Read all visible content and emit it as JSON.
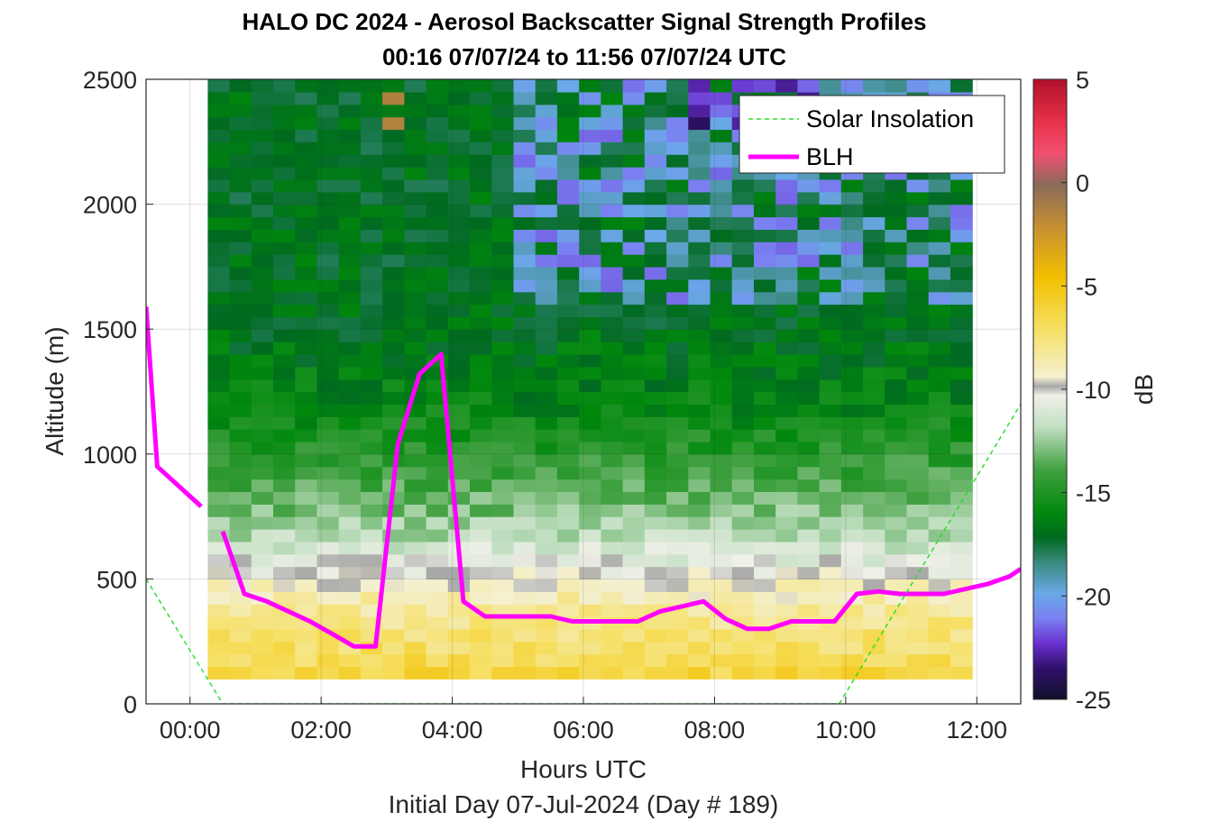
{
  "title_line1": "HALO DC 2024 - Aerosol Backscatter Signal Strength Profiles",
  "title_line2": "00:16 07/07/24 to 11:56 07/07/24  UTC",
  "chart_data": {
    "type": "heatmap",
    "xlabel": "Hours UTC",
    "ylabel": "Altitude (m)",
    "footer": "Initial Day 07-Jul-2024 (Day # 189)",
    "xlim_hours": [
      -0.67,
      12.67
    ],
    "ylim": [
      0,
      2500
    ],
    "x_ticks": [
      0,
      2,
      4,
      6,
      8,
      10,
      12
    ],
    "x_tick_labels": [
      "00:00",
      "02:00",
      "04:00",
      "06:00",
      "08:00",
      "10:00",
      "12:00"
    ],
    "y_ticks": [
      0,
      500,
      1000,
      1500,
      2000,
      2500
    ],
    "y_tick_labels": [
      "0",
      "500",
      "1000",
      "1500",
      "2000",
      "2500"
    ],
    "grid": true,
    "colorbar": {
      "label": "dB",
      "range": [
        -25,
        5
      ],
      "ticks": [
        5,
        0,
        -5,
        -10,
        -15,
        -20,
        -25
      ],
      "tick_labels": [
        "5",
        "0",
        "-5",
        "-10",
        "-15",
        "-20",
        "-25"
      ]
    },
    "legend": {
      "placement": "top-right",
      "entries": [
        {
          "label": "Solar Insolation",
          "color": "#22dd22",
          "style": "dashed"
        },
        {
          "label": "BLH",
          "color": "#ff00ff",
          "style": "solid"
        }
      ]
    },
    "heatmap": {
      "x_start_hours": 0.27,
      "x_end_hours": 11.93,
      "n_columns": 35,
      "alt_start": 100,
      "alt_end": 2500,
      "n_rows": 48,
      "typical_db_profile": {
        "altitudes": [
          100,
          200,
          350,
          450,
          550,
          700,
          900,
          1200,
          1600,
          2100,
          2500
        ],
        "db": [
          -6,
          -7,
          -8,
          -9,
          -10.5,
          -12.5,
          -14,
          -16,
          -17,
          -17,
          -17
        ]
      },
      "notable_features": [
        {
          "hours": [
            3.1,
            3.4
          ],
          "altitude": [
            2300,
            2500
          ],
          "db": -1,
          "note": "high signal cells"
        },
        {
          "hours": [
            5.0,
            12.0
          ],
          "altitude": [
            1600,
            2500
          ],
          "db": -20,
          "note": "weak signal region"
        },
        {
          "hours": [
            7.5,
            9.5
          ],
          "altitude": [
            2300,
            2500
          ],
          "db": -23,
          "note": "weakest signal"
        }
      ]
    },
    "series": [
      {
        "name": "BLH",
        "segments": [
          {
            "x": [
              -0.67,
              -0.5,
              0.17
            ],
            "y": [
              1590,
              950,
              790
            ]
          },
          {
            "x": [
              0.5,
              0.83,
              1.17,
              1.5,
              1.83,
              2.17,
              2.5,
              2.83,
              3.17,
              3.5,
              3.83,
              4.17,
              4.5,
              4.83,
              5.17,
              5.5,
              5.83,
              6.17,
              6.5,
              6.83,
              7.17,
              7.5,
              7.83,
              8.17,
              8.5,
              8.83,
              9.17,
              9.5,
              9.83,
              10.17,
              10.5,
              10.83,
              11.17,
              11.5,
              11.83,
              12.17,
              12.5,
              12.67
            ],
            "y": [
              690,
              440,
              410,
              370,
              330,
              280,
              230,
              230,
              1040,
              1320,
              1400,
              410,
              350,
              350,
              350,
              350,
              330,
              330,
              330,
              330,
              370,
              390,
              410,
              340,
              300,
              300,
              330,
              330,
              330,
              440,
              450,
              440,
              440,
              440,
              460,
              480,
              510,
              540
            ]
          }
        ]
      },
      {
        "name": "Solar Insolation",
        "x": [
          -0.67,
          0.5,
          9.9,
          12.67
        ],
        "y": [
          500,
          0,
          0,
          1200
        ]
      }
    ]
  }
}
